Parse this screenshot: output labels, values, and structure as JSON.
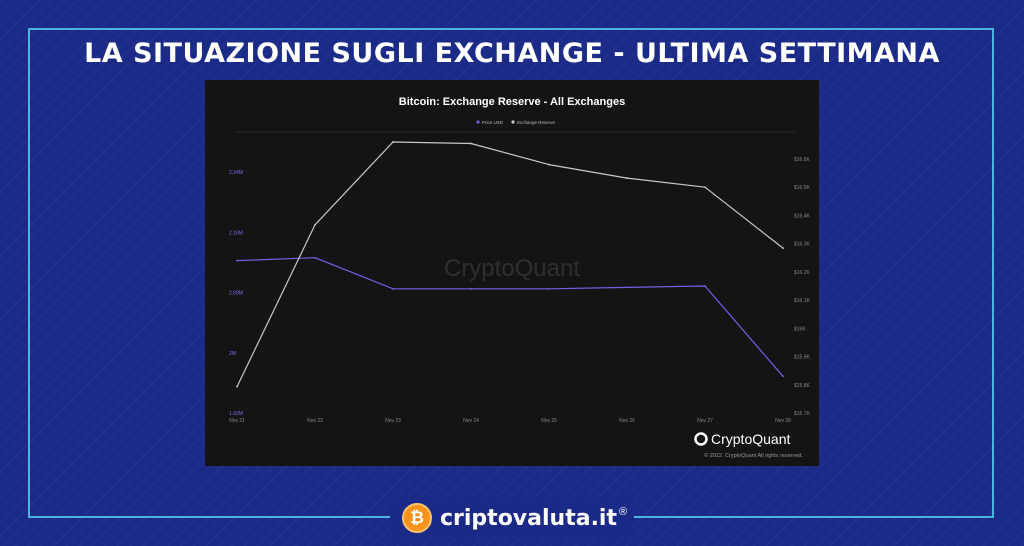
{
  "page": {
    "headline": "LA SITUAZIONE SUGLI EXCHANGE - ULTIMA SETTIMANA",
    "brand_name": "criptovaluta.it",
    "brand_registered": "®",
    "brand_coin_symbol": "₿",
    "colors": {
      "background": "#1b2a86",
      "frame": "#4fb3e0",
      "brand_coin": "#f7931a"
    }
  },
  "chart_data": {
    "type": "line",
    "title": "Bitcoin: Exchange Reserve - All Exchanges",
    "watermark": "CryptoQuant",
    "logo_text": "CryptoQuant",
    "copyright": "© 2022. CryptoQuant All rights reserved.",
    "categories": [
      "Nov 21",
      "Nov 22",
      "Nov 23",
      "Nov 24",
      "Nov 25",
      "Nov 26",
      "Nov 27",
      "Nov 28"
    ],
    "left_axis": {
      "ticks": [
        "2.24M",
        "2.16M",
        "2.08M",
        "2M",
        "1.92M"
      ],
      "ylim": [
        1.92,
        2.28
      ],
      "unit_note": "millions"
    },
    "right_axis": {
      "ticks": [
        "$16.6K",
        "$16.5K",
        "$16.4K",
        "$16.3K",
        "$16.2K",
        "$16.1K",
        "$16K",
        "$15.9K",
        "$15.8K",
        "$15.7K"
      ],
      "ylim": [
        15.7,
        16.66
      ],
      "unit_note": "thousands USD"
    },
    "series": [
      {
        "name": "Price USD",
        "axis": "right",
        "color": "#6f63e8",
        "values": [
          16.24,
          16.25,
          16.14,
          16.14,
          16.14,
          16.145,
          16.15,
          15.83
        ]
      },
      {
        "name": "Exchange Reserve",
        "axis": "left",
        "color": "#c8c8c8",
        "values": [
          1.955,
          2.17,
          2.28,
          2.278,
          2.25,
          2.232,
          2.22,
          2.139
        ]
      }
    ],
    "legend_position": "top-center",
    "grid": false
  }
}
